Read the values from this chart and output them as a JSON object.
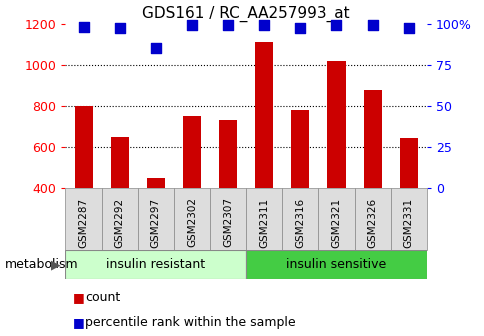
{
  "title": "GDS161 / RC_AA257993_at",
  "samples": [
    "GSM2287",
    "GSM2292",
    "GSM2297",
    "GSM2302",
    "GSM2307",
    "GSM2311",
    "GSM2316",
    "GSM2321",
    "GSM2326",
    "GSM2331"
  ],
  "counts": [
    800,
    650,
    450,
    750,
    730,
    1110,
    780,
    1020,
    875,
    645
  ],
  "percentiles": [
    98,
    97,
    85,
    99,
    99,
    99,
    97,
    99,
    99,
    97
  ],
  "group_split": 5,
  "group_label_left": "insulin resistant",
  "group_label_right": "insulin sensitive",
  "group_color_left": "#ccffcc",
  "group_color_right": "#44cc44",
  "bar_color": "#cc0000",
  "dot_color": "#0000cc",
  "ylim_left": [
    400,
    1200
  ],
  "ylim_right": [
    0,
    100
  ],
  "yticks_left": [
    400,
    600,
    800,
    1000,
    1200
  ],
  "yticks_right": [
    0,
    25,
    50,
    75,
    100
  ],
  "ytick_right_labels": [
    "0",
    "25",
    "50",
    "75",
    "100%"
  ],
  "grid_lines": [
    600,
    800,
    1000
  ],
  "background_color": "#ffffff",
  "bar_width": 0.5,
  "dot_size": 55,
  "metabolism_label": "metabolism"
}
